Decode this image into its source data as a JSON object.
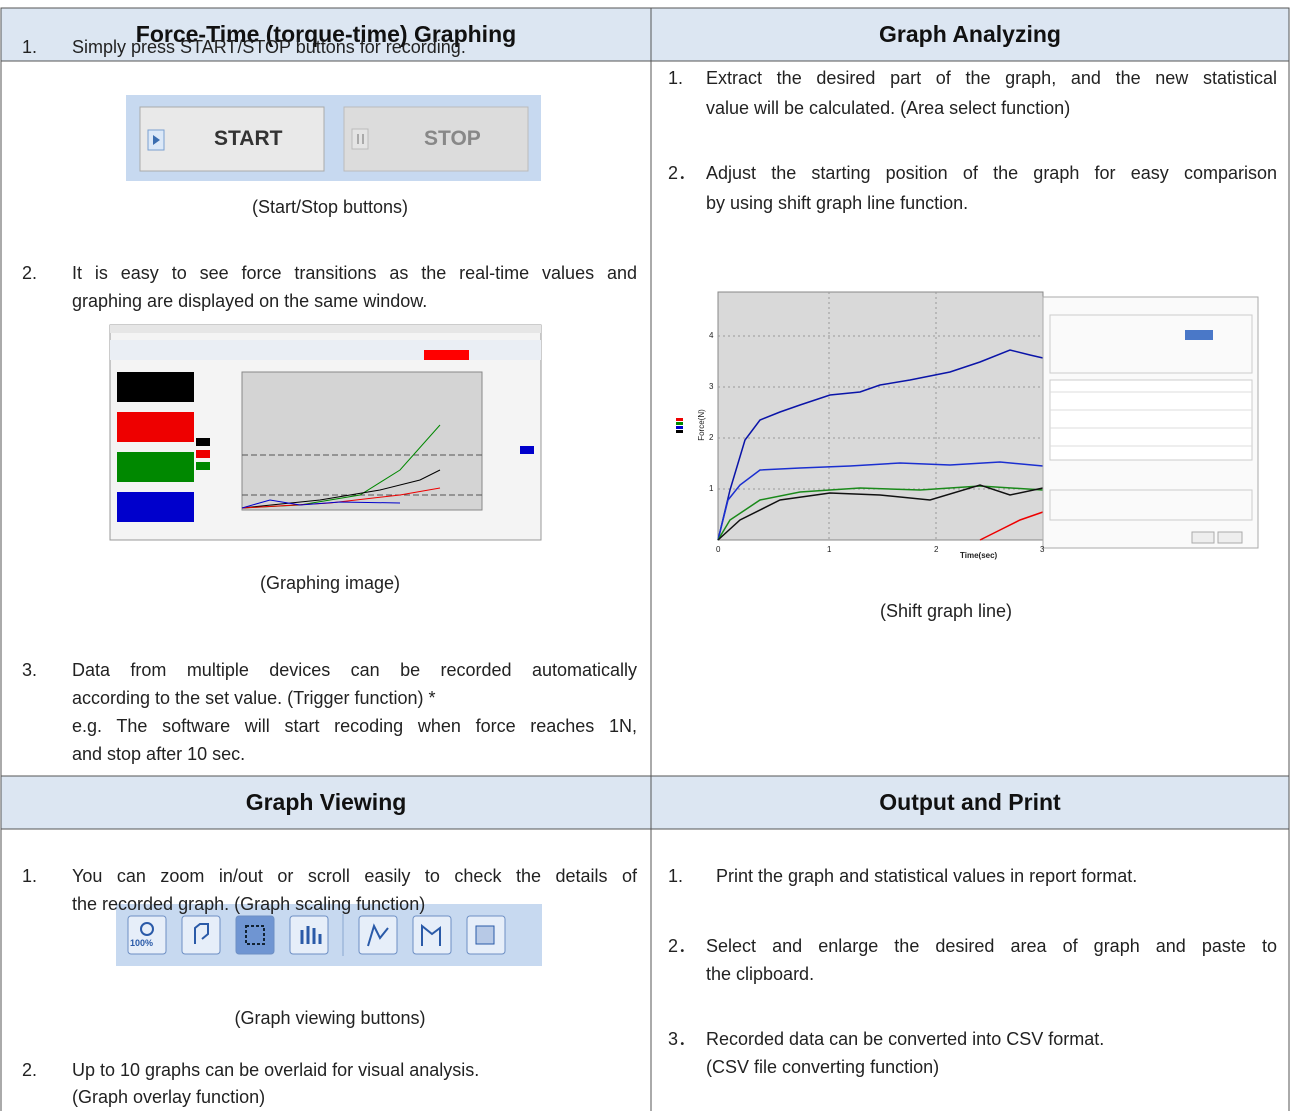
{
  "sections": [
    {
      "header": "Force-Time (torque-time) Graphing",
      "items": [
        {
          "number": "1.",
          "lines": [
            "Simply press START/STOP buttons for recording."
          ]
        },
        {
          "number": "2.",
          "lines": [
            "It is easy to see force transitions as the real-time values and",
            "graphing are displayed on the same window."
          ]
        },
        {
          "number": "3.",
          "lines": [
            "Data from multiple devices can be recorded automatically",
            "according to the set value. (Trigger function) *",
            "e.g. The software will start recoding when force reaches 1N,",
            "and stop after 10 sec."
          ]
        }
      ],
      "figures": [
        {
          "caption": "(Start/Stop buttons)",
          "buttons": [
            "START",
            "STOP"
          ]
        },
        {
          "caption": "(Graphing image)"
        }
      ]
    },
    {
      "header": "Graph Analyzing",
      "items": [
        {
          "number": "1.",
          "lines": [
            "Extract the desired part of the graph, and the new statistical",
            "value will be calculated. (Area select function)"
          ]
        },
        {
          "number": "2．",
          "lines": [
            "Adjust the starting position of the graph for easy comparison",
            "by using shift graph line function."
          ]
        }
      ],
      "figures": [
        {
          "caption": "(Shift graph line)",
          "x_label": "Time(sec)",
          "y_label": "Force(N)",
          "x_ticks": [
            "0",
            "1",
            "2",
            "3"
          ],
          "y_ticks": [
            "1",
            "2",
            "3",
            "4"
          ]
        }
      ]
    },
    {
      "header": "Graph Viewing",
      "items": [
        {
          "number": "1.",
          "lines": [
            "You can zoom in/out or scroll easily to check the details of",
            "the recorded graph. (Graph scaling function)"
          ]
        },
        {
          "number": "2.",
          "lines": [
            "Up to 10 graphs can be overlaid for visual analysis.",
            "(Graph overlay function)"
          ]
        }
      ],
      "figures": [
        {
          "caption": "(Graph viewing buttons)",
          "zoom_label": "100%"
        }
      ]
    },
    {
      "header": "Output and Print",
      "items": [
        {
          "number": "1.",
          "lines": [
            "Print the graph and statistical values in report format."
          ]
        },
        {
          "number": "2．",
          "lines": [
            "Select and enlarge the desired area of graph and paste to",
            "the clipboard."
          ]
        },
        {
          "number": "3．",
          "lines": [
            "Recorded data can be converted into CSV format.",
            "(CSV file converting function)"
          ]
        }
      ],
      "figures": []
    }
  ]
}
